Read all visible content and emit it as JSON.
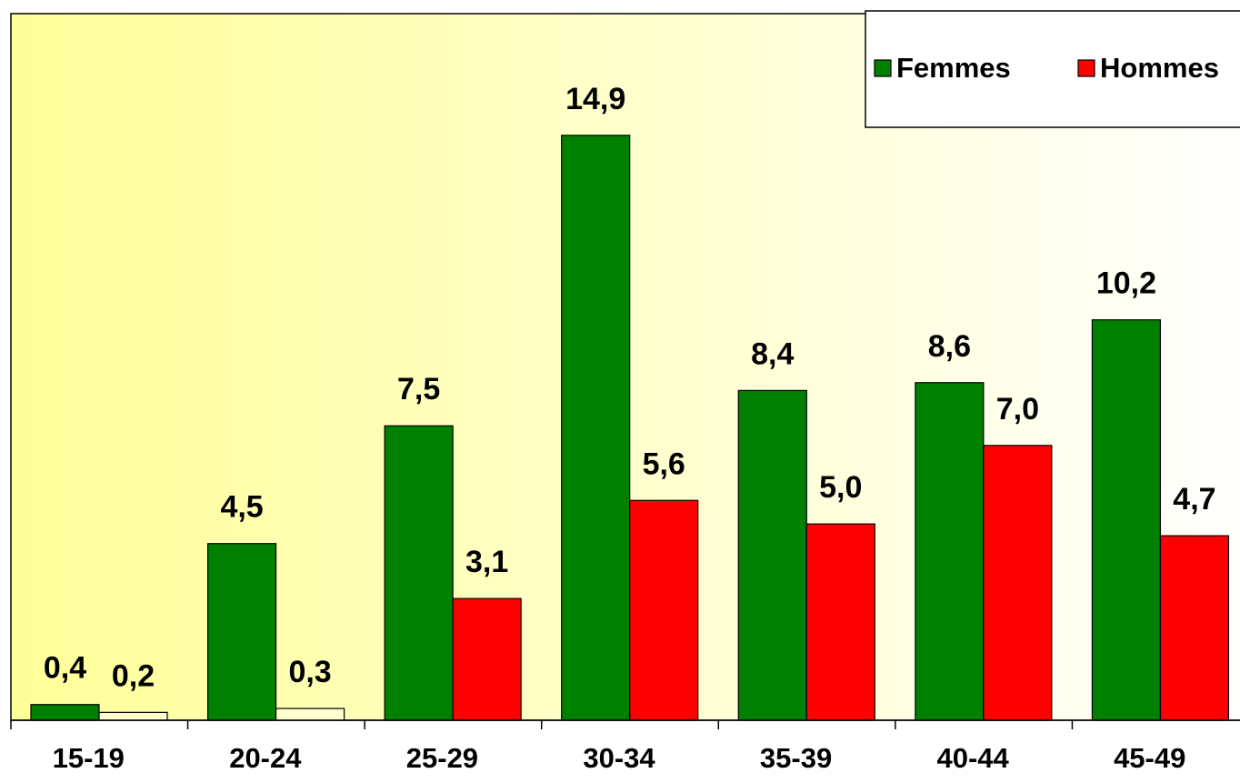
{
  "chart_data": {
    "type": "bar",
    "categories": [
      "15-19",
      "20-24",
      "25-29",
      "30-34",
      "35-39",
      "40-44",
      "45-49"
    ],
    "series": [
      {
        "name": "Femmes",
        "color": "#008000",
        "values": [
          0.4,
          4.5,
          7.5,
          14.9,
          8.4,
          8.6,
          10.2
        ],
        "value_labels": [
          "0,4",
          "4,5",
          "7,5",
          "14,9",
          "8,4",
          "8,6",
          "10,2"
        ]
      },
      {
        "name": "Hommes",
        "color": "#ff0000",
        "colors": [
          "#ffffcc",
          "#ffffcc",
          "#ff0000",
          "#ff0000",
          "#ff0000",
          "#ff0000",
          "#ff0000"
        ],
        "values": [
          0.2,
          0.3,
          3.1,
          5.6,
          5.0,
          7.0,
          4.7
        ],
        "value_labels": [
          "0,2",
          "0,3",
          "3,1",
          "5,6",
          "5,0",
          "7,0",
          "4,7"
        ]
      }
    ],
    "ylim": [
      0,
      18
    ],
    "legend": "top-right",
    "grid": false
  }
}
